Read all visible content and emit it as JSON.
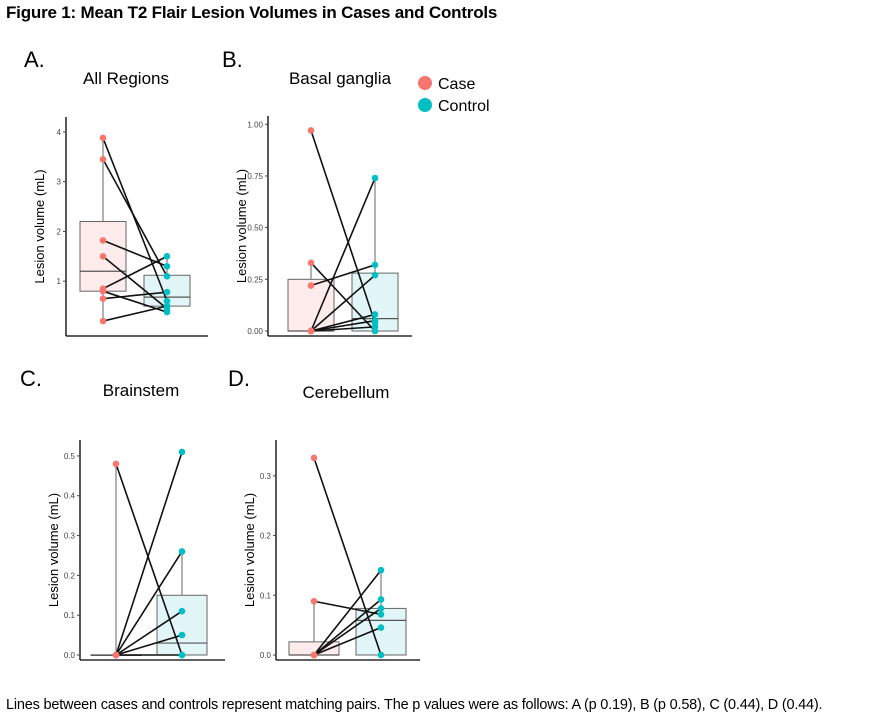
{
  "figure": {
    "title": "Figure 1: Mean T2 Flair Lesion Volumes in Cases and Controls",
    "caption": "Lines between cases and controls represent matching pairs. The p values were as follows: A (p 0.19), B (p 0.58), C (0.44), D (0.44)."
  },
  "legend": {
    "case_label": "Case",
    "control_label": "Control"
  },
  "colors": {
    "case": "#F8766D",
    "control": "#00BFC4",
    "case_box_fill": "#FDECEB",
    "control_box_fill": "#E3F6F7"
  },
  "chart_data": [
    {
      "panel": "A.",
      "type": "box-paired",
      "title": "All Regions",
      "ylabel": "Lesion volume (mL)",
      "ylim": [
        0,
        4.3
      ],
      "yticks": [
        1,
        2,
        3,
        4
      ],
      "ytick_labels": [
        "1",
        "2",
        "3",
        "4"
      ],
      "groups": [
        "Case",
        "Control"
      ],
      "box": {
        "case": {
          "min": 0.2,
          "q1": 0.8,
          "median": 1.2,
          "q3": 2.2,
          "max": 3.88
        },
        "control": {
          "min": 0.45,
          "q1": 0.5,
          "median": 0.68,
          "q3": 1.12,
          "max": 1.5
        }
      },
      "pairs": [
        [
          3.88,
          0.6
        ],
        [
          3.45,
          1.1
        ],
        [
          1.82,
          1.3
        ],
        [
          1.5,
          0.45
        ],
        [
          0.85,
          1.5
        ],
        [
          0.8,
          0.38
        ],
        [
          0.65,
          0.78
        ],
        [
          0.2,
          0.5
        ]
      ]
    },
    {
      "panel": "B.",
      "type": "box-paired",
      "title": "Basal ganglia",
      "ylabel": "Lesion volume (mL)",
      "ylim": [
        0,
        1.04
      ],
      "yticks": [
        0,
        0.25,
        0.5,
        0.75,
        1.0
      ],
      "ytick_labels": [
        "0.00",
        "0.25",
        "0.50",
        "0.75",
        "1.00"
      ],
      "groups": [
        "Case",
        "Control"
      ],
      "box": {
        "case": {
          "min": 0.0,
          "q1": 0.0,
          "median": 0.0,
          "q3": 0.25,
          "max": 0.33
        },
        "control": {
          "min": 0.0,
          "q1": 0.0,
          "median": 0.06,
          "q3": 0.28,
          "max": 0.74
        }
      },
      "pairs": [
        [
          0.97,
          0.04
        ],
        [
          0.33,
          0.0
        ],
        [
          0.22,
          0.32
        ],
        [
          0.0,
          0.74
        ],
        [
          0.0,
          0.27
        ],
        [
          0.0,
          0.08
        ],
        [
          0.0,
          0.05
        ],
        [
          0.0,
          0.02
        ]
      ]
    },
    {
      "panel": "C.",
      "type": "box-paired",
      "title": "Brainstem",
      "ylabel": "Lesion volume (mL)",
      "ylim": [
        0,
        0.54
      ],
      "yticks": [
        0,
        0.1,
        0.2,
        0.3,
        0.4,
        0.5
      ],
      "ytick_labels": [
        "0.0",
        "0.1",
        "0.2",
        "0.3",
        "0.4",
        "0.5"
      ],
      "groups": [
        "Case",
        "Control"
      ],
      "box": {
        "case": {
          "min": 0.0,
          "q1": 0.0,
          "median": 0.0,
          "q3": 0.0,
          "max": 0.48
        },
        "control": {
          "min": 0.0,
          "q1": 0.0,
          "median": 0.03,
          "q3": 0.15,
          "max": 0.26
        }
      },
      "pairs": [
        [
          0.48,
          0.0
        ],
        [
          0.0,
          0.51
        ],
        [
          0.0,
          0.26
        ],
        [
          0.0,
          0.11
        ],
        [
          0.0,
          0.05
        ],
        [
          0.0,
          0.0
        ]
      ]
    },
    {
      "panel": "D.",
      "type": "box-paired",
      "title": "Cerebellum",
      "ylabel": "Lesion volume (mL)",
      "ylim": [
        0,
        0.36
      ],
      "yticks": [
        0,
        0.1,
        0.2,
        0.3
      ],
      "ytick_labels": [
        "0.0",
        "0.1",
        "0.2",
        "0.3"
      ],
      "groups": [
        "Case",
        "Control"
      ],
      "box": {
        "case": {
          "min": 0.0,
          "q1": 0.0,
          "median": 0.0,
          "q3": 0.022,
          "max": 0.09
        },
        "control": {
          "min": 0.0,
          "q1": 0.0,
          "median": 0.058,
          "q3": 0.078,
          "max": 0.142
        }
      },
      "pairs": [
        [
          0.33,
          0.0
        ],
        [
          0.09,
          0.068
        ],
        [
          0.0,
          0.142
        ],
        [
          0.0,
          0.093
        ],
        [
          0.0,
          0.078
        ],
        [
          0.0,
          0.046
        ]
      ]
    }
  ]
}
